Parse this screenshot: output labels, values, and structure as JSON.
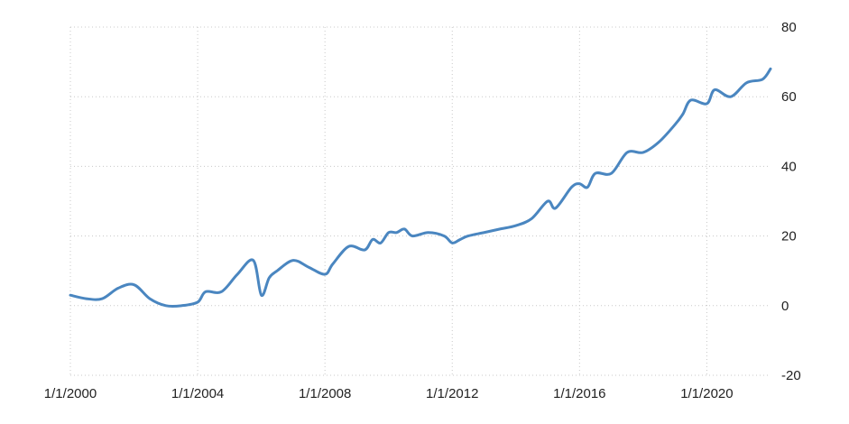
{
  "chart_data": {
    "type": "line",
    "title": "",
    "xlabel": "",
    "ylabel": "",
    "ylim": [
      -20,
      80
    ],
    "xlim": [
      "2000-01-01",
      "2022-01-01"
    ],
    "x_ticks": [
      "1/1/2000",
      "1/1/2004",
      "1/1/2008",
      "1/1/2012",
      "1/1/2016",
      "1/1/2020"
    ],
    "y_ticks": [
      -20,
      0,
      20,
      40,
      60,
      80
    ],
    "grid": true,
    "legend": "none",
    "colors": {
      "line": "#4a86c0",
      "grid": "#c8c8c8",
      "text": "#222222"
    },
    "series": [
      {
        "x": [
          "2000-01-01",
          "2000-07-01",
          "2001-01-01",
          "2001-07-01",
          "2002-01-01",
          "2002-07-01",
          "2003-01-01",
          "2003-07-01",
          "2004-01-01",
          "2004-04-01",
          "2004-10-01",
          "2005-04-01",
          "2005-10-01",
          "2006-01-01",
          "2006-04-01",
          "2006-07-01",
          "2007-01-01",
          "2007-07-01",
          "2008-01-01",
          "2008-04-01",
          "2008-10-01",
          "2009-04-01",
          "2009-07-01",
          "2009-10-01",
          "2010-01-01",
          "2010-04-01",
          "2010-07-01",
          "2010-10-01",
          "2011-04-01",
          "2011-10-01",
          "2012-01-01",
          "2012-04-01",
          "2012-07-01",
          "2013-01-01",
          "2013-07-01",
          "2014-01-01",
          "2014-07-01",
          "2015-01-01",
          "2015-04-01",
          "2015-10-01",
          "2016-01-01",
          "2016-04-01",
          "2016-07-01",
          "2017-01-01",
          "2017-07-01",
          "2018-01-01",
          "2018-07-01",
          "2019-01-01",
          "2019-04-01",
          "2019-07-01",
          "2020-01-01",
          "2020-04-01",
          "2020-10-01",
          "2021-04-01",
          "2021-10-01",
          "2022-01-01"
        ],
        "values": [
          3,
          2,
          2,
          5,
          6,
          2,
          0,
          0,
          1,
          4,
          4,
          9,
          13,
          3,
          8,
          10,
          13,
          11,
          9,
          12,
          17,
          16,
          19,
          18,
          21,
          21,
          22,
          20,
          21,
          20,
          18,
          19,
          20,
          21,
          22,
          23,
          25,
          30,
          28,
          34,
          35,
          34,
          38,
          38,
          44,
          44,
          47,
          52,
          55,
          59,
          58,
          62,
          60,
          64,
          65,
          68
        ]
      }
    ]
  }
}
